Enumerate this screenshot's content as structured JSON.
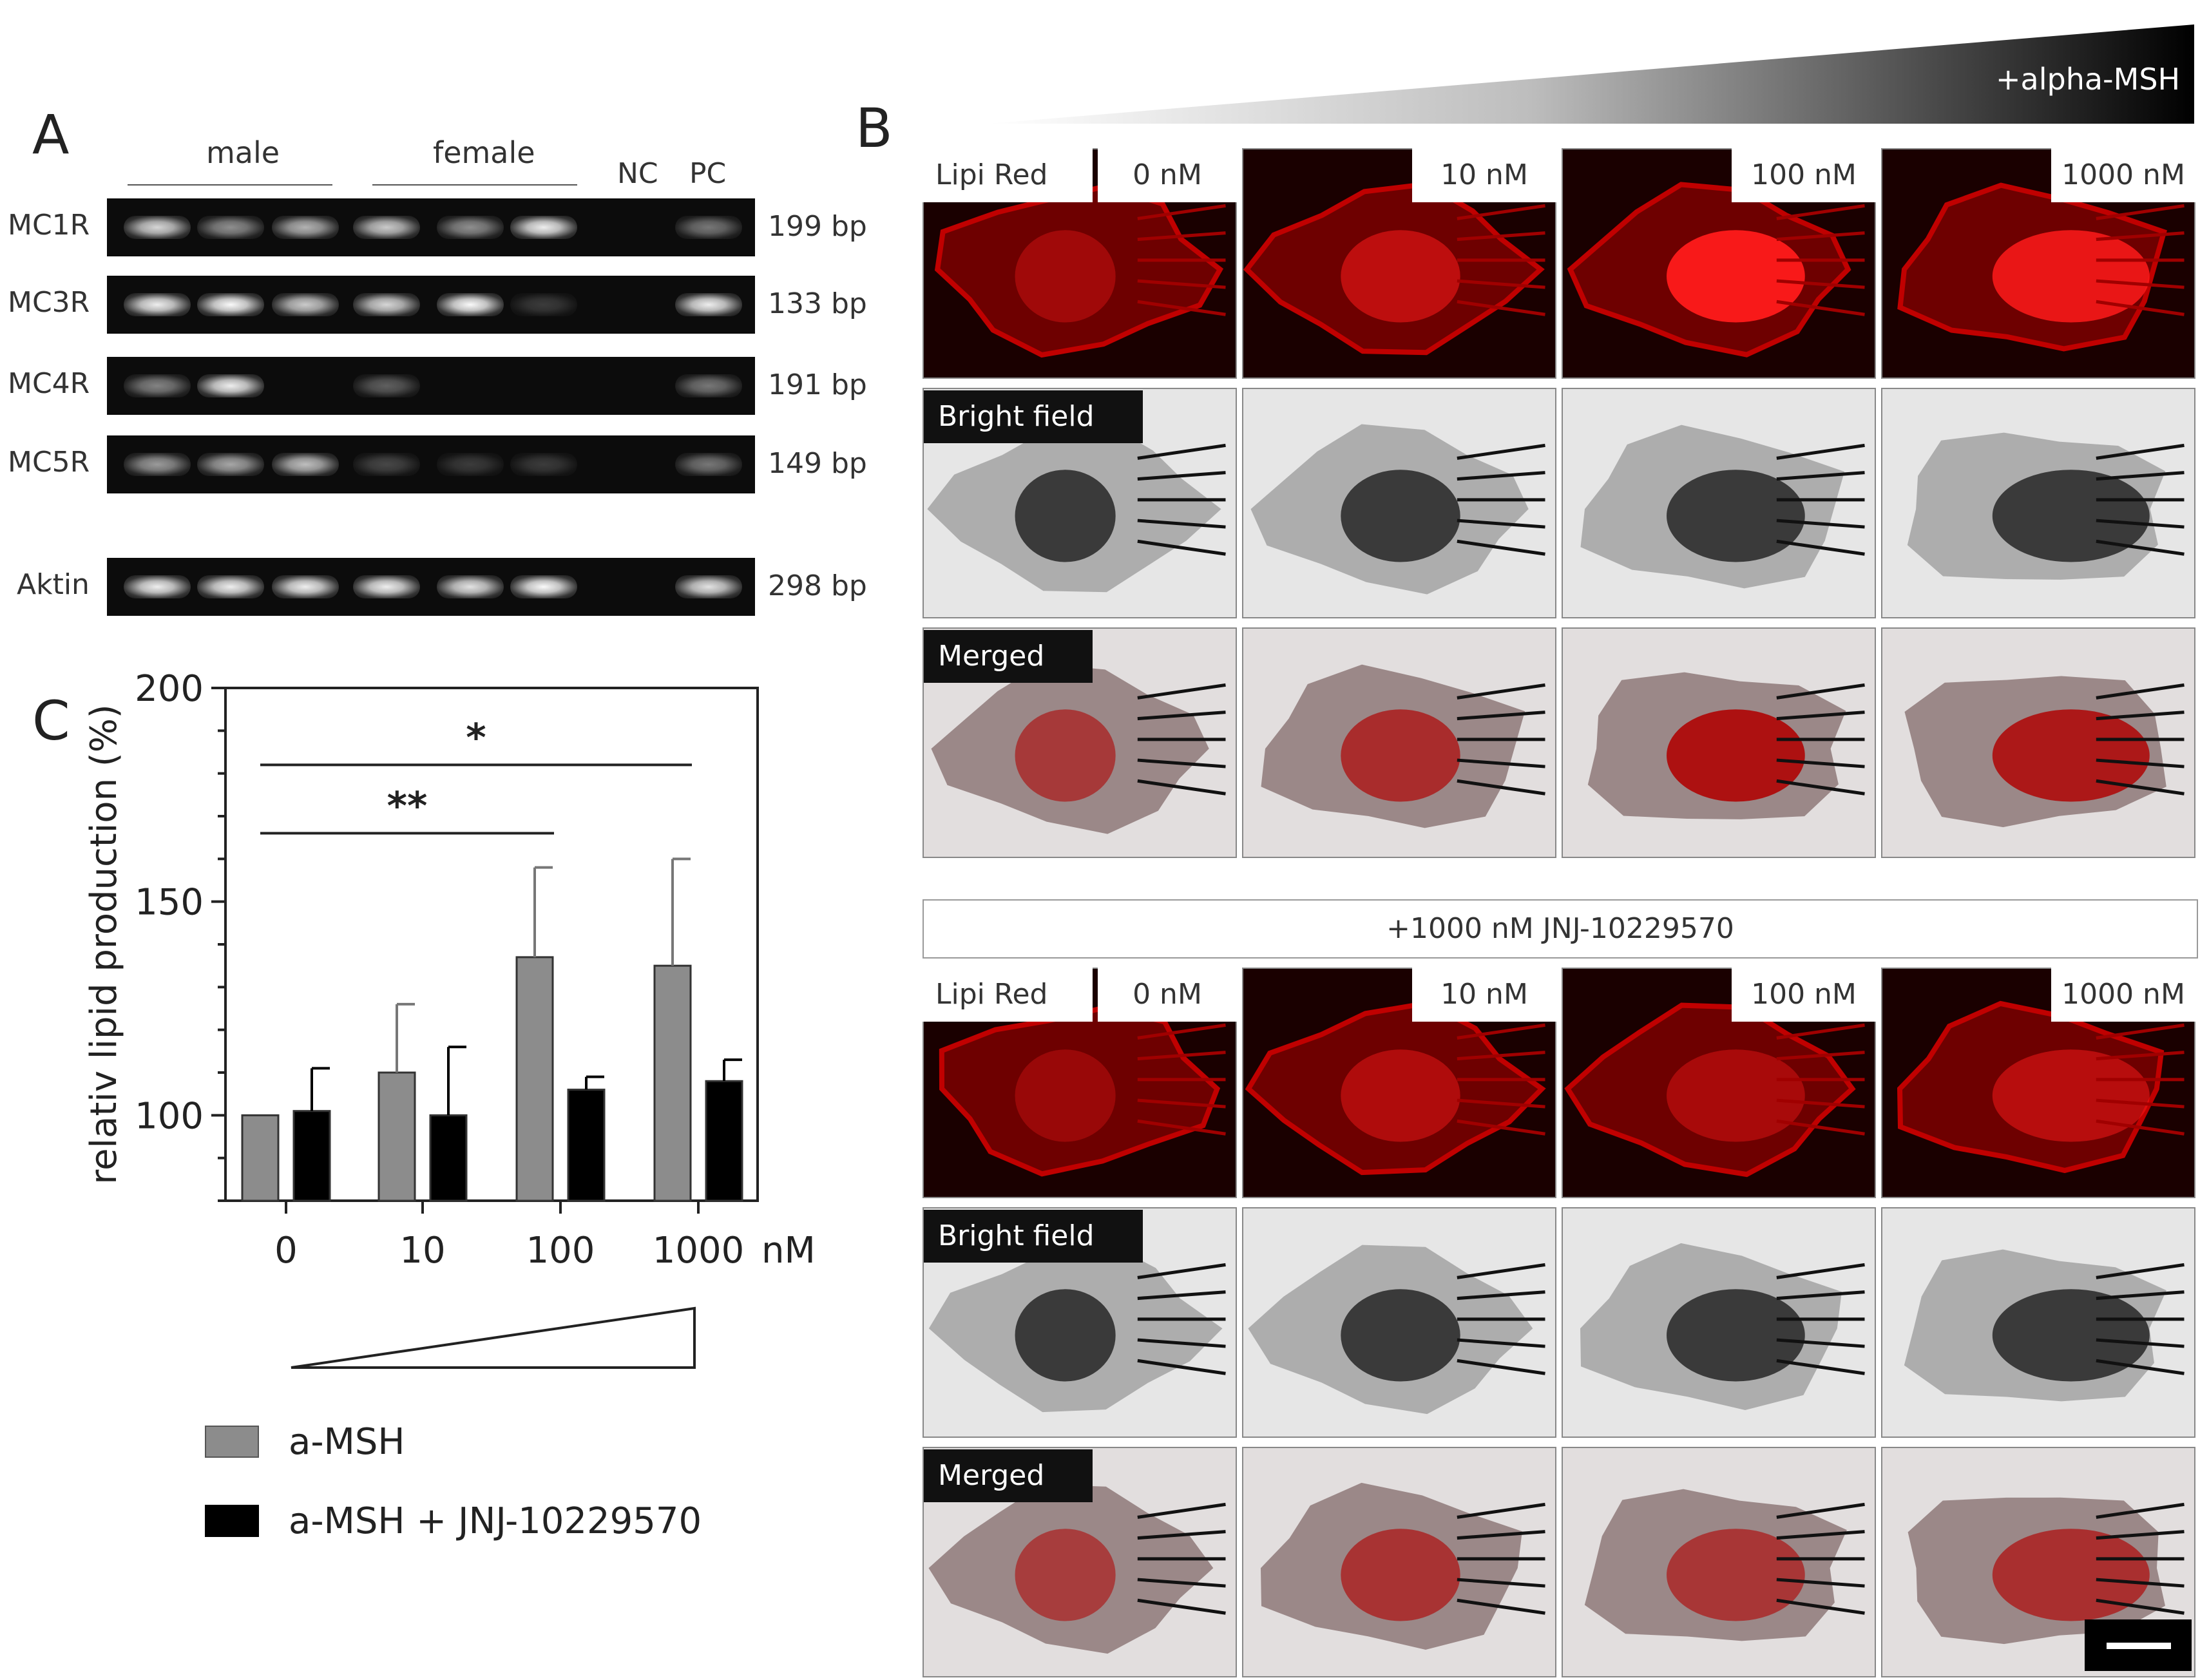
{
  "panelA": {
    "label": "A",
    "group_labels": {
      "male": "male",
      "female": "female",
      "nc": "NC",
      "pc": "PC"
    },
    "rows": [
      {
        "gene": "MC1R",
        "size": "199 bp",
        "bands": [
          0.85,
          0.55,
          0.7,
          0.8,
          0.55,
          0.95,
          0,
          0.45
        ]
      },
      {
        "gene": "MC3R",
        "size": "133 bp",
        "bands": [
          0.95,
          1.0,
          0.8,
          0.85,
          1.0,
          0.2,
          0,
          0.95
        ]
      },
      {
        "gene": "MC4R",
        "size": "191 bp",
        "bands": [
          0.5,
          0.95,
          0,
          0.35,
          0,
          0,
          0,
          0.45
        ]
      },
      {
        "gene": "MC5R",
        "size": "149 bp",
        "bands": [
          0.6,
          0.65,
          0.75,
          0.25,
          0.2,
          0.2,
          0,
          0.45
        ]
      },
      {
        "gene": "Aktin",
        "size": "298 bp",
        "bands": [
          0.95,
          0.95,
          0.95,
          0.95,
          0.9,
          1.0,
          0,
          0.9
        ]
      }
    ]
  },
  "panelB": {
    "label": "B",
    "gradient_label": "+alpha-MSH",
    "inhibitor_label": "+1000 nM JNJ-10229570",
    "row_labels": [
      "Lipi Red",
      "Bright field",
      "Merged"
    ],
    "concentrations": [
      "0 nM",
      "10 nM",
      "100 nM",
      "1000 nM"
    ],
    "lipid_intensity_top": [
      0.35,
      0.55,
      0.95,
      0.85
    ],
    "lipid_intensity_bottom": [
      0.3,
      0.45,
      0.4,
      0.5
    ]
  },
  "panelC": {
    "label": "C",
    "chart_data": {
      "type": "bar",
      "categories": [
        "0",
        "10",
        "100",
        "1000"
      ],
      "x_unit": "nM",
      "ylabel": "relativ lipid production (%)",
      "ylim": [
        80,
        200
      ],
      "yticks": [
        100,
        150,
        200
      ],
      "series": [
        {
          "name": "a-MSH",
          "color": "#8c8c8c",
          "values": [
            100,
            110,
            137,
            135
          ],
          "errors": [
            0,
            16,
            21,
            25
          ]
        },
        {
          "name": "a-MSH + JNJ-10229570",
          "color": "#000000",
          "values": [
            101,
            100,
            106,
            108
          ],
          "errors": [
            10,
            16,
            3,
            5
          ]
        }
      ],
      "significance": [
        {
          "from": "0",
          "to": "100",
          "label": "**",
          "y": 166
        },
        {
          "from": "0",
          "to": "1000",
          "label": "*",
          "y": 182
        }
      ]
    }
  }
}
